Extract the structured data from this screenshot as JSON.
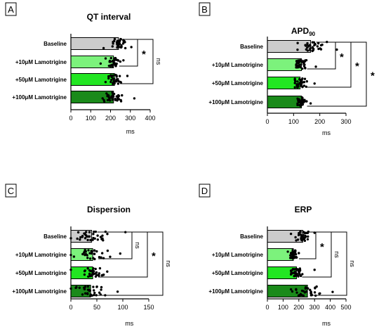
{
  "colors": {
    "baseline": "#cccccc",
    "lam10": "#7cf27c",
    "lam50": "#22e622",
    "lam100": "#1a8a1a",
    "dot": "#000000"
  },
  "chart_data": [
    {
      "type": "bar",
      "panel_label": "A",
      "title": "QT interval",
      "xlabel": "ms",
      "xlim": [
        0,
        400
      ],
      "ticks": [
        0,
        100,
        200,
        300,
        400
      ],
      "categories": [
        "Baseline",
        "+10μM Lamotrigine",
        "+50μM Lamotrigine",
        "+100μM Lamotrigine"
      ],
      "values": [
        240,
        215,
        220,
        215
      ],
      "point_range": [
        [
          165,
          305
        ],
        [
          150,
          265
        ],
        [
          175,
          285
        ],
        [
          160,
          320
        ]
      ],
      "significance": [
        {
          "from": 0,
          "to": 1,
          "label": "*"
        },
        {
          "from": 0,
          "to": 2,
          "label": "ns"
        }
      ]
    },
    {
      "type": "bar",
      "panel_label": "B",
      "title": "APD",
      "title_sub": "90",
      "xlabel": "ms",
      "xlim": [
        0,
        300
      ],
      "ticks": [
        0,
        100,
        200,
        300
      ],
      "categories": [
        "Baseline",
        "+10μM Lamotrigine",
        "+50μM Lamotrigine",
        "+100μM Lamotrigine"
      ],
      "values": [
        165,
        130,
        125,
        130
      ],
      "point_range": [
        [
          115,
          265
        ],
        [
          110,
          185
        ],
        [
          105,
          180
        ],
        [
          115,
          165
        ]
      ],
      "significance": [
        {
          "from": 0,
          "to": 1,
          "label": "*"
        },
        {
          "from": 0,
          "to": 2,
          "label": "*"
        },
        {
          "from": 0,
          "to": 3,
          "label": "*"
        }
      ]
    },
    {
      "type": "bar",
      "panel_label": "C",
      "title": "Dispersion",
      "xlabel": "ms",
      "xlim": [
        0,
        150
      ],
      "ticks": [
        0,
        50,
        100,
        150
      ],
      "categories": [
        "Baseline",
        "+10μM Lamotrigine",
        "+50μM Lamotrigine",
        "+100μM Lamotrigine"
      ],
      "values": [
        40,
        42,
        42,
        38
      ],
      "point_range": [
        [
          0,
          105
        ],
        [
          0,
          95
        ],
        [
          0,
          70
        ],
        [
          0,
          90
        ]
      ],
      "significance": [
        {
          "from": 0,
          "to": 1,
          "label": "ns"
        },
        {
          "from": 0,
          "to": 2,
          "label": "*"
        },
        {
          "from": 0,
          "to": 3,
          "label": "ns"
        }
      ]
    },
    {
      "type": "bar",
      "panel_label": "D",
      "title": "ERP",
      "xlabel": "ms",
      "xlim": [
        0,
        500
      ],
      "ticks": [
        0,
        100,
        200,
        300,
        400,
        500
      ],
      "categories": [
        "Baseline",
        "+10μM Lamotrigine",
        "+50μM Lamotrigine",
        "+100μM Lamotrigine"
      ],
      "values": [
        225,
        165,
        185,
        255
      ],
      "point_range": [
        [
          150,
          300
        ],
        [
          130,
          200
        ],
        [
          150,
          300
        ],
        [
          150,
          415
        ]
      ],
      "significance": [
        {
          "from": 0,
          "to": 1,
          "label": "*"
        },
        {
          "from": 0,
          "to": 2,
          "label": "ns"
        },
        {
          "from": 0,
          "to": 3,
          "label": "ns"
        }
      ]
    }
  ]
}
